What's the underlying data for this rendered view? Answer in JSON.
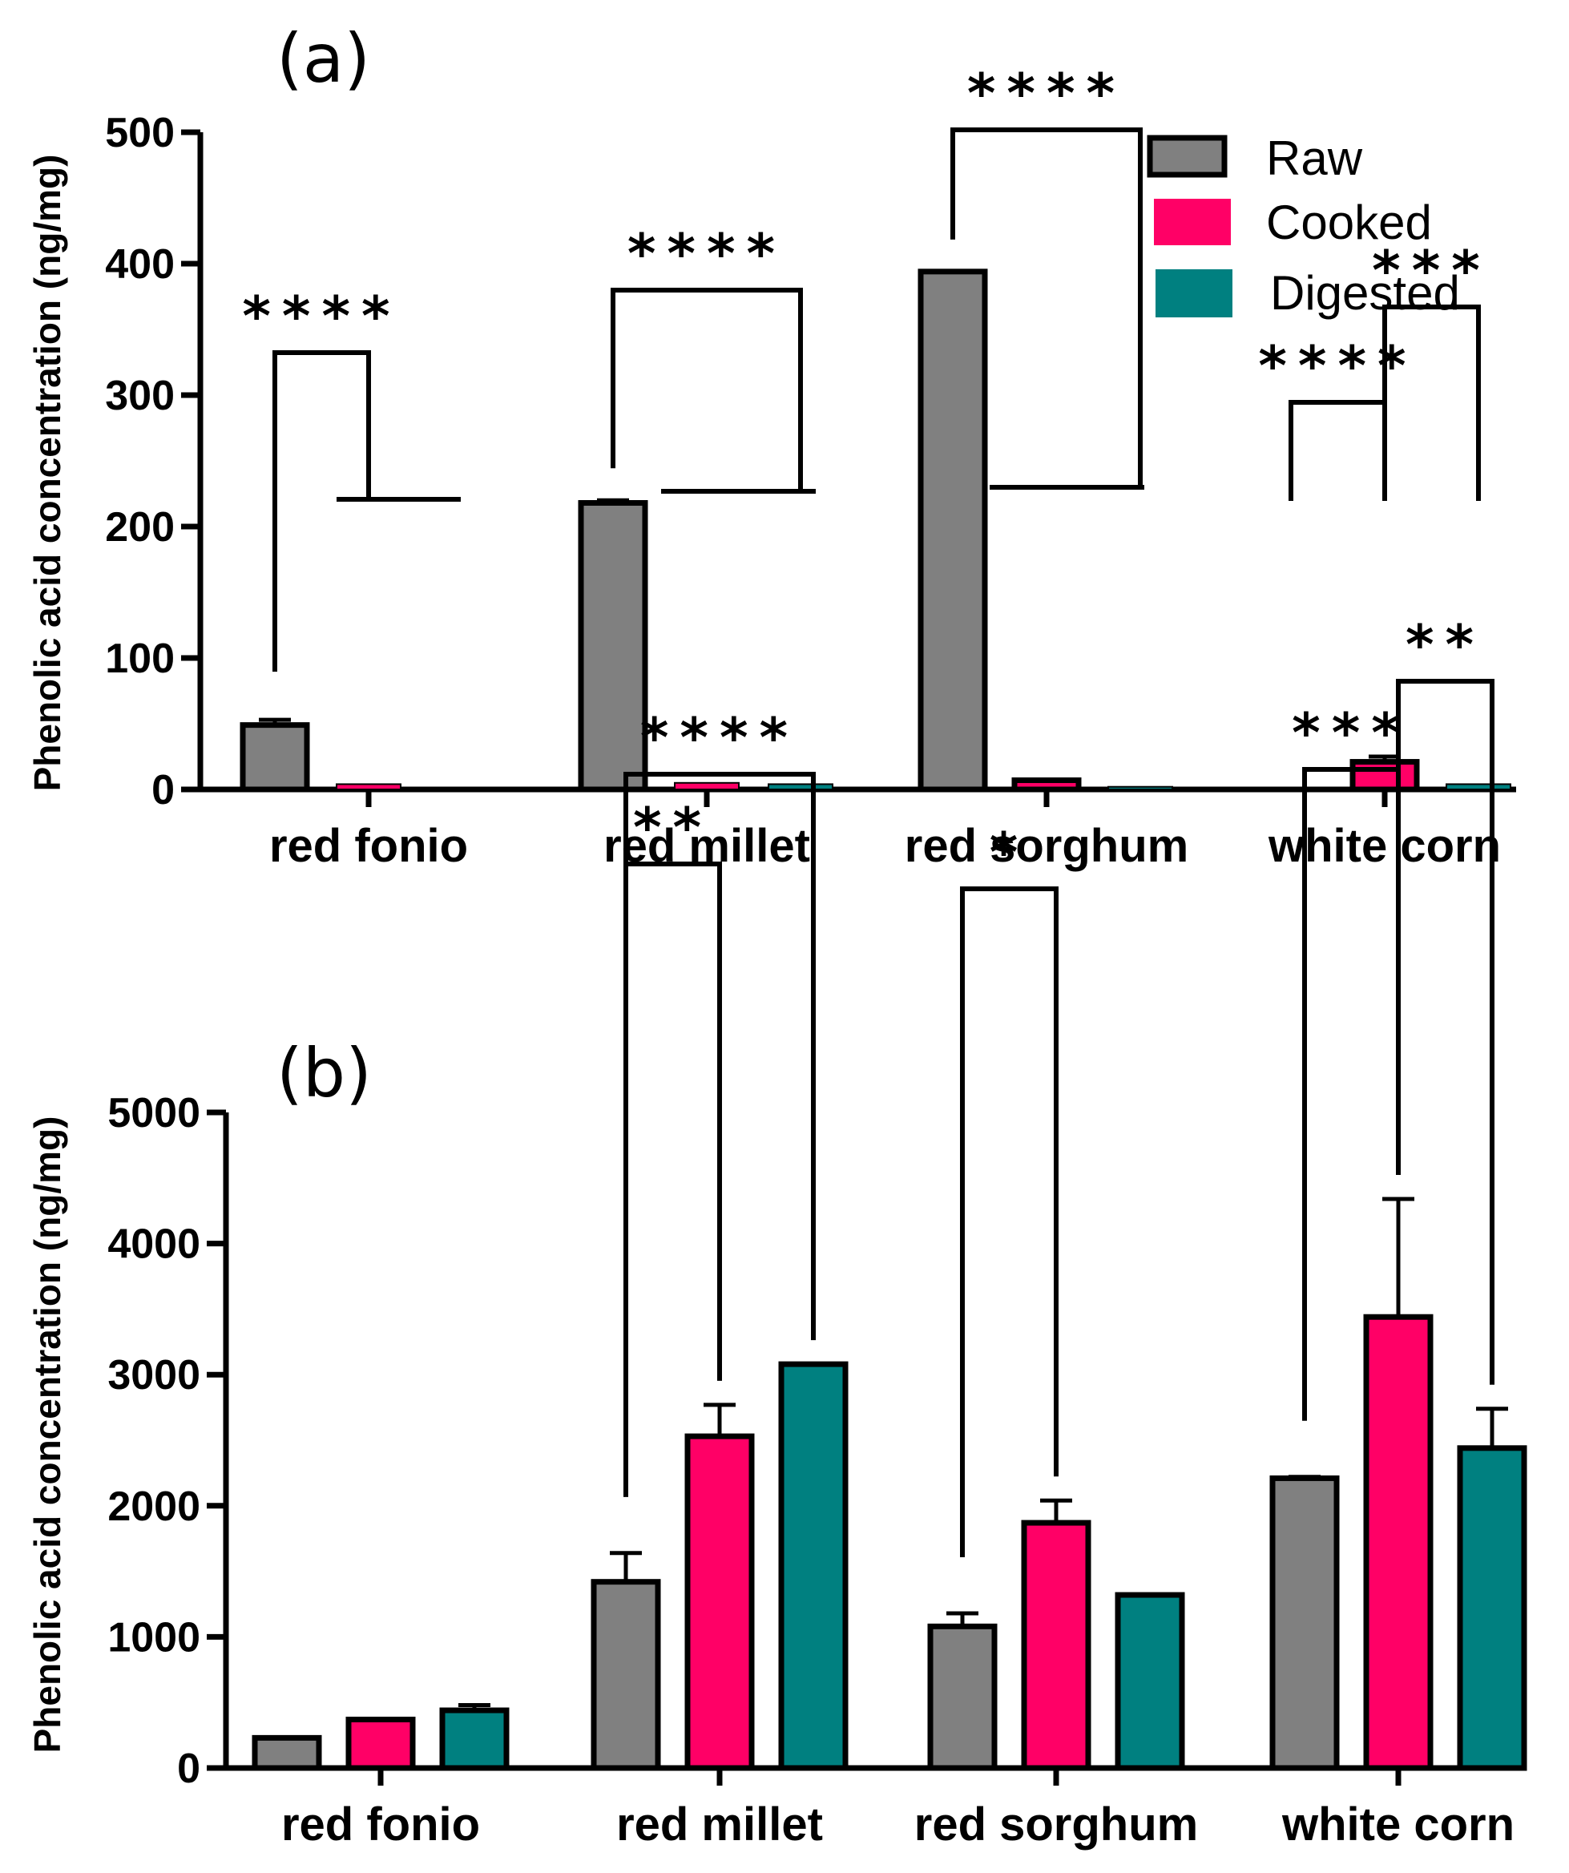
{
  "chart_data": [
    {
      "type": "bar",
      "panel_label": "(a)",
      "ylabel": "Phenolic acid  concentration (ng/mg)",
      "xlabel": "",
      "ylim": [
        0,
        500
      ],
      "yticks": [
        "0",
        "100",
        "200",
        "300",
        "400",
        "500"
      ],
      "ytick_values": [
        0,
        100,
        200,
        300,
        400,
        500
      ],
      "categories": [
        "red fonio",
        "red millet",
        "red sorghum",
        "white corn"
      ],
      "series": [
        {
          "name": "Raw",
          "color": "#808080",
          "values": [
            49,
            218,
            394,
            1
          ],
          "errors": [
            4,
            2,
            0,
            0
          ]
        },
        {
          "name": "Cooked",
          "color": "#ff0066",
          "values": [
            4,
            5,
            7,
            21
          ],
          "errors": [
            0,
            0,
            0,
            4
          ]
        },
        {
          "name": "Digested",
          "color": "#008080",
          "values": [
            0,
            4,
            2,
            4
          ],
          "errors": [
            0,
            0,
            0,
            0
          ]
        }
      ],
      "legend": {
        "position": "top-right",
        "entries": [
          "Raw",
          "Cooked",
          "Digested"
        ]
      },
      "significance": [
        {
          "category": 0,
          "from": "Raw",
          "to": "Cooked",
          "label": "****"
        },
        {
          "category": 1,
          "from": "Raw",
          "to": "Digested",
          "label": "****"
        },
        {
          "category": 2,
          "from": "Raw",
          "to": "Digested",
          "label": "****"
        },
        {
          "category": 3,
          "from": "Raw",
          "to": "Cooked",
          "label": "****"
        },
        {
          "category": 3,
          "from": "Cooked",
          "to": "Digested",
          "label": "***"
        }
      ]
    },
    {
      "type": "bar",
      "panel_label": "(b)",
      "ylabel": "Phenolic acid  concentration (ng/mg)",
      "xlabel": "",
      "ylim": [
        0,
        5000
      ],
      "yticks": [
        "0",
        "1000",
        "2000",
        "3000",
        "4000",
        "5000"
      ],
      "ytick_values": [
        0,
        1000,
        2000,
        3000,
        4000,
        5000
      ],
      "categories": [
        "red fonio",
        "red millet",
        "red sorghum",
        "white corn"
      ],
      "series": [
        {
          "name": "Raw",
          "color": "#808080",
          "values": [
            230,
            1420,
            1080,
            2210
          ],
          "errors": [
            0,
            220,
            100,
            10
          ]
        },
        {
          "name": "Cooked",
          "color": "#ff0066",
          "values": [
            370,
            2530,
            1870,
            3440
          ],
          "errors": [
            0,
            240,
            170,
            900
          ]
        },
        {
          "name": "Digested",
          "color": "#008080",
          "values": [
            440,
            3080,
            1320,
            2440
          ],
          "errors": [
            40,
            0,
            0,
            300
          ]
        }
      ],
      "significance": [
        {
          "category": 1,
          "from": "Raw",
          "to": "Cooked",
          "label": "**"
        },
        {
          "category": 1,
          "from": "Raw",
          "to": "Digested",
          "label": "****"
        },
        {
          "category": 2,
          "from": "Raw",
          "to": "Cooked",
          "label": "*"
        },
        {
          "category": 3,
          "from": "Raw",
          "to": "Cooked",
          "label": "***"
        },
        {
          "category": 3,
          "from": "Cooked",
          "to": "Digested",
          "label": "**"
        }
      ]
    }
  ]
}
